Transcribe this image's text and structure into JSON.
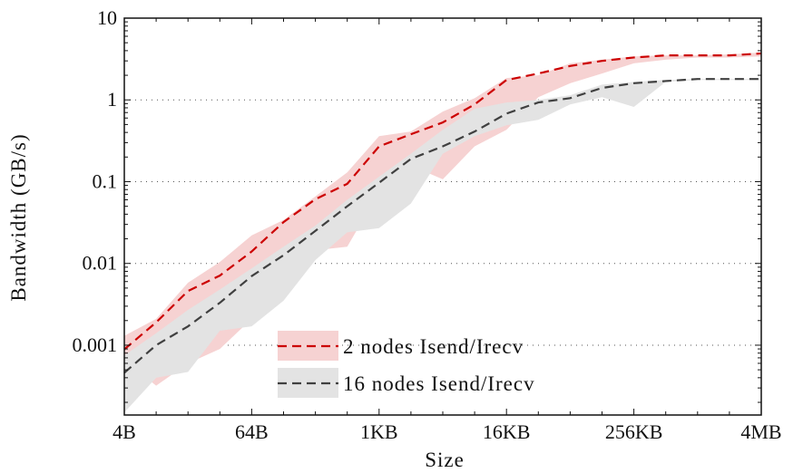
{
  "chart_data": {
    "type": "line",
    "title": "",
    "xlabel": "Size",
    "ylabel": "Bandwidth (GB/s)",
    "xscale": "log2",
    "yscale": "log10",
    "x_bytes": [
      4,
      8,
      16,
      32,
      64,
      128,
      256,
      512,
      1024,
      2048,
      4096,
      8192,
      16384,
      32768,
      65536,
      131072,
      262144,
      524288,
      1048576,
      2097152,
      4194304
    ],
    "xticks": [
      {
        "value": 4,
        "label": "4B"
      },
      {
        "value": 64,
        "label": "64B"
      },
      {
        "value": 1024,
        "label": "1KB"
      },
      {
        "value": 16384,
        "label": "16KB"
      },
      {
        "value": 262144,
        "label": "256KB"
      },
      {
        "value": 4194304,
        "label": "4MB"
      }
    ],
    "yticks": [
      {
        "value": 0.001,
        "label": "0.001"
      },
      {
        "value": 0.01,
        "label": "0.01"
      },
      {
        "value": 0.1,
        "label": "0.1"
      },
      {
        "value": 1,
        "label": "1"
      },
      {
        "value": 10,
        "label": "10"
      }
    ],
    "ylim": [
      0.00014,
      10
    ],
    "grid": "horizontal dotted",
    "legend_position": "bottom-right",
    "series": [
      {
        "name": "2 nodes Isend/Irecv",
        "line_color": "#cc0000",
        "band_color": "#f6d2d2",
        "values": [
          0.00089,
          0.0019,
          0.0046,
          0.0071,
          0.014,
          0.032,
          0.061,
          0.094,
          0.27,
          0.38,
          0.53,
          0.88,
          1.75,
          2.1,
          2.6,
          3.0,
          3.3,
          3.5,
          3.5,
          3.5,
          3.7
        ],
        "band_upper": [
          0.0013,
          0.0021,
          0.0058,
          0.0104,
          0.022,
          0.034,
          0.066,
          0.13,
          0.36,
          0.41,
          0.72,
          1.05,
          1.85,
          2.0,
          2.8,
          3.1,
          3.4,
          3.5,
          3.5,
          3.6,
          3.8
        ],
        "band_lower": [
          0.00066,
          0.00032,
          0.0006,
          0.0009,
          0.0021,
          0.0067,
          0.0145,
          0.016,
          0.075,
          0.157,
          0.107,
          0.27,
          0.43,
          1.08,
          1.6,
          2.1,
          2.8,
          3.1,
          3.3,
          3.3,
          3.4
        ]
      },
      {
        "name": "16 nodes Isend/Irecv",
        "line_color": "#404040",
        "band_color": "#e3e3e3",
        "values": [
          0.00046,
          0.001,
          0.0017,
          0.0033,
          0.007,
          0.0126,
          0.025,
          0.05,
          0.097,
          0.19,
          0.27,
          0.41,
          0.68,
          0.93,
          1.05,
          1.4,
          1.6,
          1.7,
          1.8,
          1.8,
          1.8
        ],
        "band_upper": [
          0.00075,
          0.0014,
          0.0027,
          0.0048,
          0.0087,
          0.016,
          0.029,
          0.06,
          0.115,
          0.22,
          0.43,
          0.78,
          0.93,
          1.0,
          1.14,
          1.54,
          1.66,
          1.75,
          1.8,
          1.8,
          1.8
        ],
        "band_lower": [
          0.00015,
          0.0004,
          0.00047,
          0.0015,
          0.0017,
          0.0035,
          0.011,
          0.024,
          0.027,
          0.054,
          0.22,
          0.36,
          0.49,
          0.57,
          0.88,
          1.08,
          0.82,
          1.66,
          1.75,
          1.75,
          1.75
        ]
      }
    ]
  }
}
